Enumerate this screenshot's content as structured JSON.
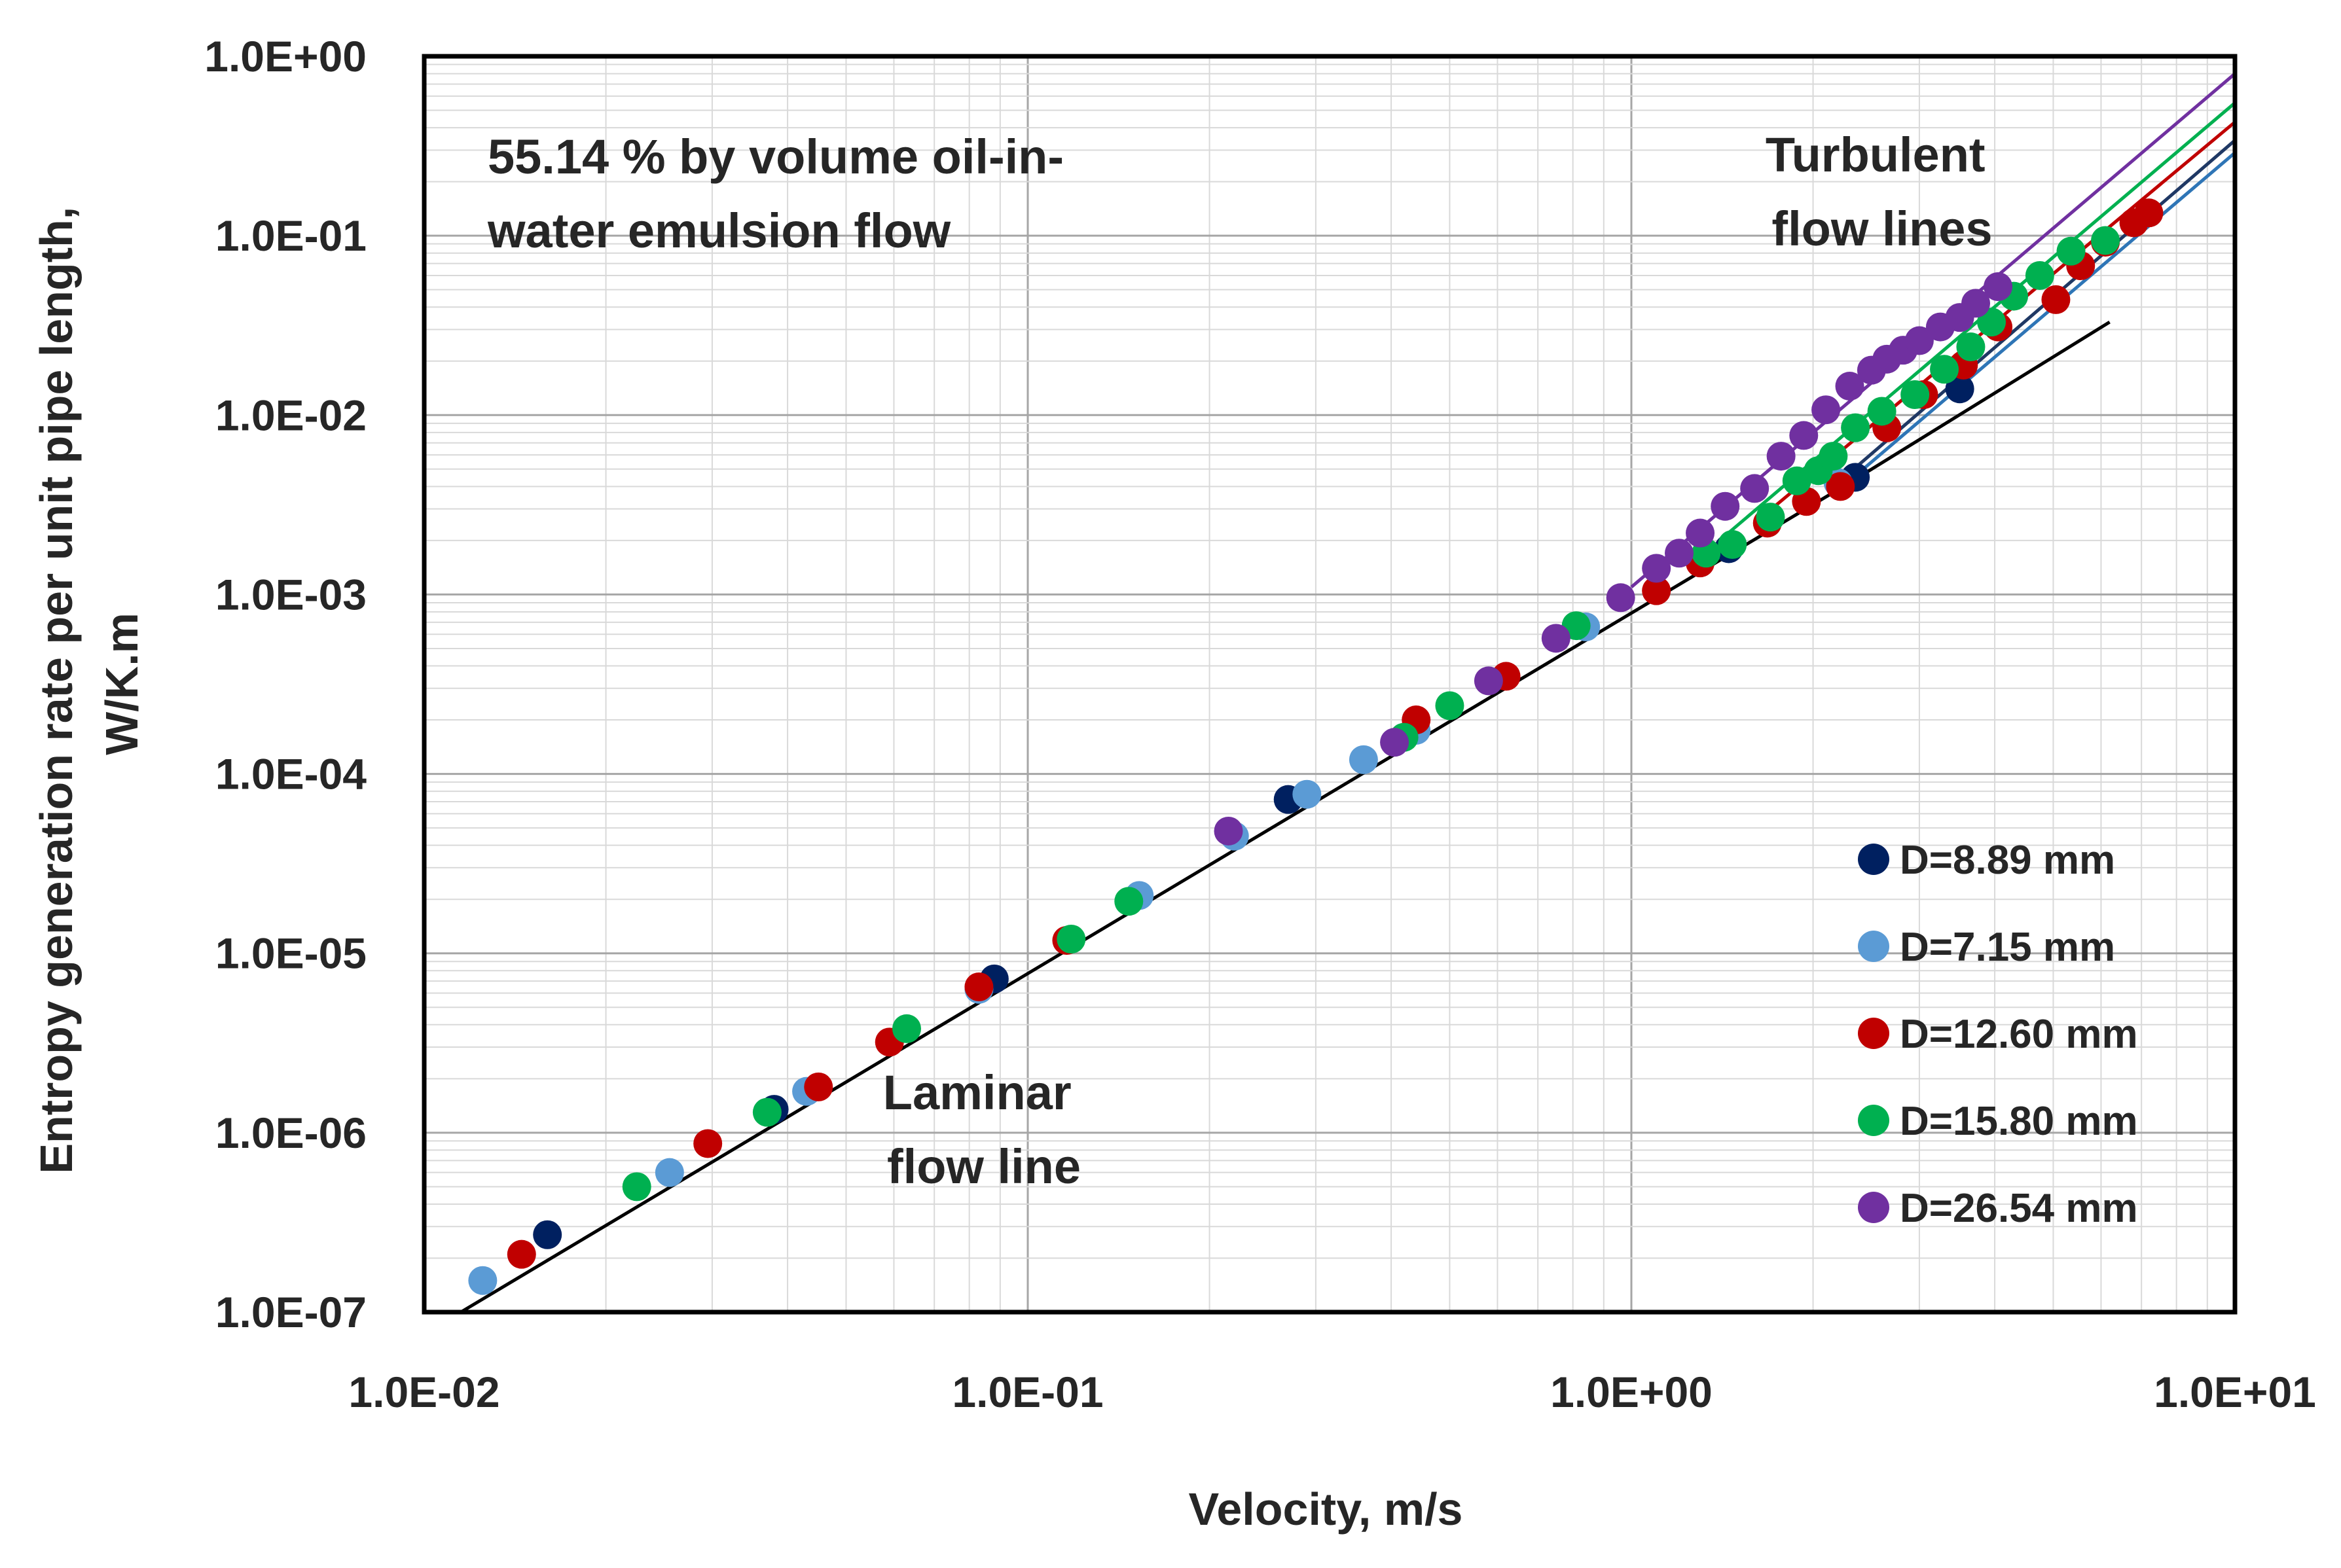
{
  "chart_data": {
    "type": "scatter",
    "title": "",
    "xlabel": "Velocity, m/s",
    "ylabel_lines": [
      "Entropy generation rate per unit pipe length,",
      "W/K.m"
    ],
    "xscale": "log",
    "yscale": "log",
    "xlim": [
      0.01,
      10
    ],
    "ylim": [
      1e-07,
      1
    ],
    "grid": true,
    "legend_position": "bottom-right",
    "x_tick_values": [
      0.01,
      0.1,
      1,
      10
    ],
    "x_tick_labels": [
      "1.0E-02",
      "1.0E-01",
      "1.0E+00",
      "1.0E+01"
    ],
    "y_tick_values": [
      1,
      0.1,
      0.01,
      0.001,
      0.0001,
      1e-05,
      1e-06,
      1e-07
    ],
    "y_tick_labels": [
      "1.0E+00",
      "1.0E-01",
      "1.0E-02",
      "1.0E-03",
      "1.0E-04",
      "1.0E-05",
      "1.0E-06",
      "1.0E-07"
    ],
    "annotations": [
      {
        "id": "emulsion",
        "lines": [
          "55.14 % by volume oil-in-",
          "water emulsion flow"
        ]
      },
      {
        "id": "turbulent",
        "lines": [
          "Turbulent",
          "flow lines"
        ]
      },
      {
        "id": "laminar",
        "lines": [
          "Laminar",
          "flow line"
        ]
      }
    ],
    "laminar_line": {
      "name": "Laminar flow line",
      "color": "#000000",
      "x": [
        0.0115,
        2.3
      ],
      "y": [
        1e-07,
        0.0042
      ]
    },
    "turbulent_extension_line": {
      "color": "#000000",
      "x": [
        2.3,
        6.2
      ],
      "y": [
        0.0042,
        0.033
      ]
    },
    "turbulent_lines": [
      {
        "name": "D=8.89 mm",
        "color": "#1f3864",
        "x": [
          2.2,
          10
        ],
        "y": [
          0.0042,
          0.34
        ]
      },
      {
        "name": "D=7.15 mm",
        "color": "#2e75b6",
        "x": [
          2.2,
          10
        ],
        "y": [
          0.0038,
          0.29
        ]
      },
      {
        "name": "D=12.60 mm",
        "color": "#c00000",
        "x": [
          1.6,
          10
        ],
        "y": [
          0.0025,
          0.43
        ]
      },
      {
        "name": "D=15.80 mm",
        "color": "#00b050",
        "x": [
          1.4,
          10
        ],
        "y": [
          0.002,
          0.55
        ]
      },
      {
        "name": "D=26.54 mm",
        "color": "#7030a0",
        "x": [
          1.0,
          10
        ],
        "y": [
          0.0011,
          0.8
        ]
      }
    ],
    "series": [
      {
        "name": "D=8.89 mm",
        "color": "#002060",
        "x": [
          0.016,
          0.038,
          0.088,
          0.27,
          1.45,
          2.35,
          3.5
        ],
        "y": [
          2.7e-07,
          1.35e-06,
          7.2e-06,
          7.2e-05,
          0.0018,
          0.0045,
          0.014
        ]
      },
      {
        "name": "D=7.15 mm",
        "color": "#5b9bd5",
        "x": [
          0.0125,
          0.0255,
          0.043,
          0.083,
          0.153,
          0.22,
          0.29,
          0.36,
          0.44,
          0.84,
          2.2
        ],
        "y": [
          1.5e-07,
          6e-07,
          1.7e-06,
          6.3e-06,
          2.1e-05,
          4.5e-05,
          7.7e-05,
          0.00012,
          0.000175,
          0.00066,
          0.0042
        ]
      },
      {
        "name": "D=12.60 mm",
        "color": "#c00000",
        "x": [
          0.0145,
          0.0295,
          0.045,
          0.059,
          0.083,
          0.116,
          0.44,
          0.62,
          1.1,
          1.3,
          1.68,
          1.95,
          2.22,
          2.65,
          3.05,
          3.55,
          4.05,
          5.05,
          5.55,
          6.1,
          6.8,
          7.2
        ],
        "y": [
          2.1e-07,
          8.7e-07,
          1.8e-06,
          3.2e-06,
          6.5e-06,
          1.18e-05,
          0.0002,
          0.00035,
          0.00105,
          0.0015,
          0.0025,
          0.0033,
          0.004,
          0.0085,
          0.013,
          0.019,
          0.031,
          0.044,
          0.068,
          0.092,
          0.118,
          0.134
        ]
      },
      {
        "name": "D=15.80 mm",
        "color": "#00b050",
        "x": [
          0.0225,
          0.037,
          0.063,
          0.118,
          0.147,
          0.42,
          0.5,
          0.81,
          1.33,
          1.47,
          1.7,
          1.88,
          2.04,
          2.16,
          2.35,
          2.6,
          2.95,
          3.3,
          3.65,
          3.95,
          4.3,
          4.75,
          5.35,
          6.1
        ],
        "y": [
          5e-07,
          1.3e-06,
          3.8e-06,
          1.2e-05,
          1.95e-05,
          0.00016,
          0.00024,
          0.00067,
          0.0017,
          0.0019,
          0.0027,
          0.0043,
          0.0049,
          0.0059,
          0.0085,
          0.0105,
          0.013,
          0.018,
          0.024,
          0.033,
          0.046,
          0.06,
          0.082,
          0.094
        ]
      },
      {
        "name": "D=26.54 mm",
        "color": "#7030a0",
        "x": [
          0.215,
          0.405,
          0.58,
          0.75,
          0.96,
          1.1,
          1.2,
          1.3,
          1.43,
          1.6,
          1.77,
          1.93,
          2.1,
          2.3,
          2.5,
          2.65,
          2.82,
          3.0,
          3.25,
          3.5,
          3.72,
          4.05
        ],
        "y": [
          4.8e-05,
          0.00015,
          0.00033,
          0.00057,
          0.00096,
          0.0014,
          0.0017,
          0.0022,
          0.0031,
          0.0039,
          0.0059,
          0.0077,
          0.0107,
          0.0145,
          0.0178,
          0.0205,
          0.023,
          0.026,
          0.031,
          0.035,
          0.042,
          0.052
        ]
      }
    ]
  }
}
